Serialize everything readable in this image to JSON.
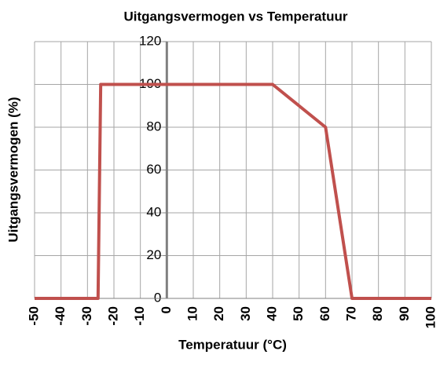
{
  "chart_data": {
    "type": "line",
    "title": "Uitgangsvermogen vs Temperatuur",
    "x_label": "Temperatuur (°C)",
    "y_label": "Uitgangsvermogen (%)",
    "x": [
      -50,
      -26,
      -25,
      40,
      60,
      70,
      100
    ],
    "values": [
      0,
      0,
      100,
      100,
      80,
      0,
      0
    ],
    "color": "#c0504d",
    "xlim": [
      -50,
      100
    ],
    "xticks": [
      -50,
      -40,
      -30,
      -20,
      -10,
      0,
      10,
      20,
      30,
      40,
      50,
      60,
      70,
      80,
      90,
      100
    ],
    "ylim": [
      0,
      120
    ],
    "yticks": [
      0,
      20,
      40,
      60,
      80,
      100,
      120
    ],
    "grid": true
  }
}
